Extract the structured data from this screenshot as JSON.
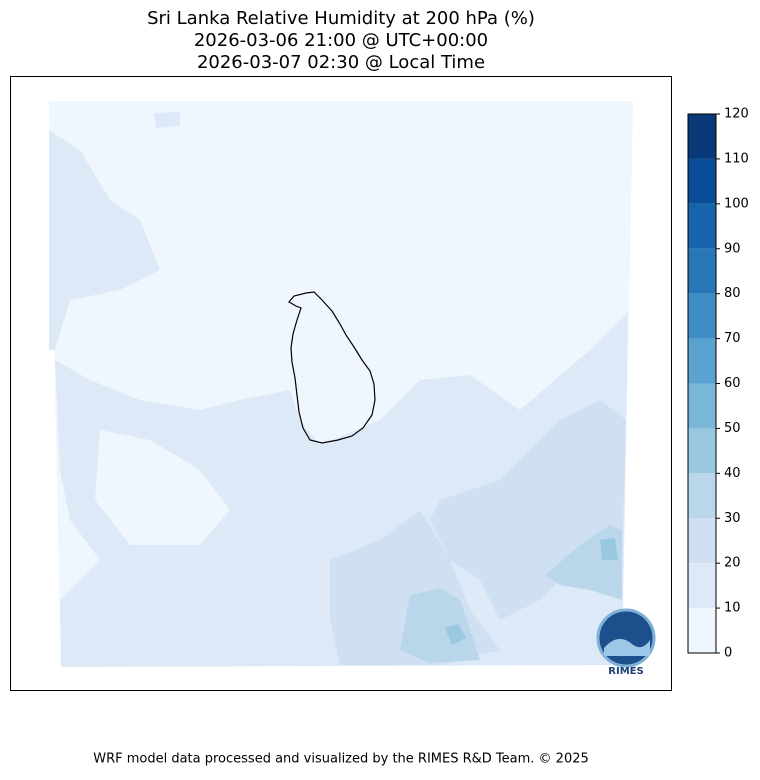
{
  "title": [
    "Sri Lanka Relative Humidity at 200 hPa (%)",
    "2026-03-06 21:00 @ UTC+00:00",
    "2026-03-07 02:30 @ Local Time"
  ],
  "colorbar": {
    "ticks": [
      0,
      10,
      20,
      30,
      40,
      50,
      60,
      70,
      80,
      90,
      100,
      110,
      120
    ],
    "colors": [
      "#f0f6fd",
      "#dde9f6",
      "#cfe0f2",
      "#b9d6eb",
      "#9ac8e0",
      "#7ab6d9",
      "#5aa2cf",
      "#3e8dc4",
      "#2878b8",
      "#1764ab",
      "#084d96",
      "#083978"
    ]
  },
  "logo": "RIMES",
  "footer": "WRF model data processed and visualized by the RIMES R&D Team. © 2025"
}
